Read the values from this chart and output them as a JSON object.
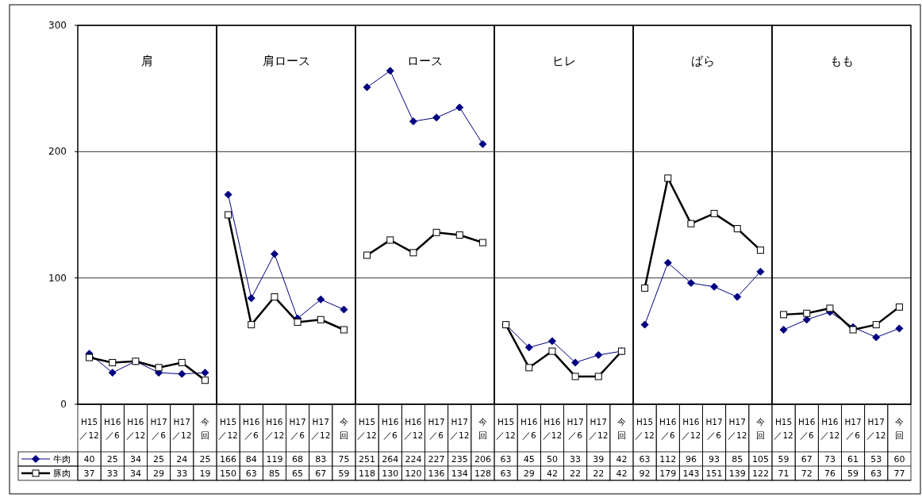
{
  "chart_data": [
    {
      "type": "line",
      "title": "肩",
      "categories": [
        "H15／12",
        "H16／6",
        "H16／12",
        "H17／6",
        "H17／12",
        "今回"
      ],
      "ylim": [
        0,
        300
      ],
      "yticks": [
        0,
        100,
        200,
        300
      ],
      "grid": "y",
      "data_labels": true,
      "legend": "bottom",
      "series": [
        {
          "name": "牛肉",
          "color": "#000080",
          "marker": "diamond",
          "values": [
            40,
            25,
            34,
            25,
            24,
            25
          ]
        },
        {
          "name": "豚肉",
          "color": "#000000",
          "marker": "square",
          "values": [
            37,
            33,
            34,
            29,
            33,
            19
          ]
        }
      ]
    },
    {
      "type": "line",
      "title": "肩ロース",
      "categories": [
        "H15／12",
        "H16／6",
        "H16／12",
        "H17／6",
        "H17／12",
        "今回"
      ],
      "ylim": [
        0,
        300
      ],
      "yticks": [
        0,
        100,
        200,
        300
      ],
      "grid": "y",
      "data_labels": true,
      "tick_labels": "x",
      "series": [
        {
          "color": "#000080",
          "marker": "diamond",
          "values": [
            166,
            84,
            119,
            68,
            83,
            75
          ]
        },
        {
          "color": "#000000",
          "marker": "square",
          "values": [
            150,
            63,
            85,
            65,
            67,
            59
          ]
        }
      ]
    },
    {
      "type": "line",
      "title": "ロース",
      "categories": [
        "H15／12",
        "H16／6",
        "H16／12",
        "H17／6",
        "H17／12",
        "今回"
      ],
      "ylim": [
        0,
        300
      ],
      "yticks": [
        0,
        100,
        200,
        300
      ],
      "grid": "y",
      "data_labels": true,
      "tick_labels": "x",
      "series": [
        {
          "color": "#000080",
          "marker": "diamond",
          "values": [
            251,
            264,
            224,
            227,
            235,
            206
          ]
        },
        {
          "color": "#000000",
          "marker": "square",
          "values": [
            118,
            130,
            120,
            136,
            134,
            128
          ]
        }
      ]
    },
    {
      "type": "line",
      "title": "ヒレ",
      "categories": [
        "H15／12",
        "H16／6",
        "H16／12",
        "H17／6",
        "H17／12",
        "今回"
      ],
      "ylim": [
        0,
        300
      ],
      "yticks": [
        0,
        100,
        200,
        300
      ],
      "grid": "y",
      "data_labels": true,
      "tick_labels": "x",
      "series": [
        {
          "color": "#000080",
          "marker": "diamond",
          "values": [
            63,
            45,
            50,
            33,
            39,
            42
          ]
        },
        {
          "color": "#000000",
          "marker": "square",
          "values": [
            63,
            29,
            42,
            22,
            22,
            42
          ]
        }
      ]
    },
    {
      "type": "line",
      "title": "ばら",
      "categories": [
        "H15／12",
        "H16／6",
        "H16／12",
        "H17／6",
        "H17／12",
        "今回"
      ],
      "ylim": [
        0,
        300
      ],
      "yticks": [
        0,
        100,
        200,
        300
      ],
      "grid": "y",
      "data_labels": true,
      "tick_labels": "x",
      "series": [
        {
          "color": "#000080",
          "marker": "diamond",
          "values": [
            63,
            112,
            96,
            93,
            85,
            105
          ]
        },
        {
          "color": "#000000",
          "marker": "square",
          "values": [
            92,
            179,
            143,
            151,
            139,
            122
          ]
        }
      ]
    },
    {
      "type": "line",
      "title": "もも",
      "categories": [
        "H15／12",
        "H16／6",
        "H16／12",
        "H17／6",
        "H17／12",
        "今回"
      ],
      "ylim": [
        0,
        300
      ],
      "yticks": [
        0,
        100,
        200,
        300
      ],
      "grid": "y",
      "data_labels": true,
      "tick_labels": "x",
      "series": [
        {
          "color": "#000080",
          "marker": "diamond",
          "values": [
            59,
            67,
            73,
            61,
            53,
            60
          ]
        },
        {
          "color": "#000000",
          "marker": "square",
          "values": [
            71,
            72,
            76,
            59,
            63,
            77
          ]
        }
      ]
    }
  ]
}
